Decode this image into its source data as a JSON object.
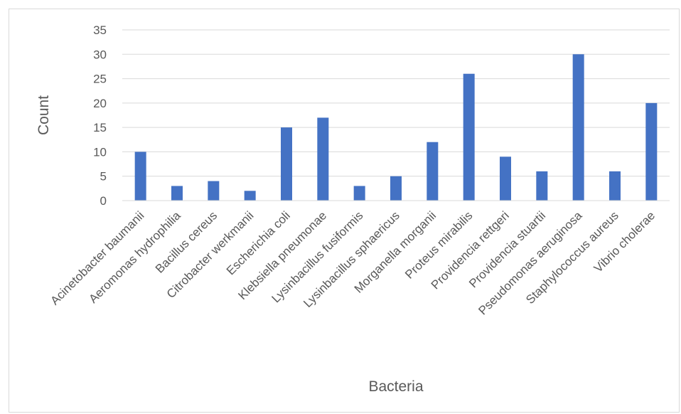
{
  "chart_data": {
    "type": "bar",
    "title": "",
    "xlabel": "Bacteria",
    "ylabel": "Count",
    "ylim": [
      0,
      35
    ],
    "yticks": [
      0,
      5,
      10,
      15,
      20,
      25,
      30,
      35
    ],
    "grid": true,
    "legend": "none",
    "bar_color": "#4472C4",
    "categories": [
      "Acinetobacter baumanii",
      "Aeromonas hydrophilia",
      "Bacillus cereus",
      "Citrobacter werkmanii",
      "Escherichia coli",
      "Klebsiella pneumonae",
      "Lysinbacillus fusiformis",
      "Lysinbacillus sphaericus",
      "Morganella morganii",
      "Proteus mirabilis",
      "Providencia rettgeri",
      "Providencia stuartii",
      "Pseudomonas aeruginosa",
      "Staphylococcus aureus",
      "Vibrio cholerae"
    ],
    "values": [
      10,
      3,
      4,
      2,
      15,
      17,
      3,
      5,
      12,
      26,
      9,
      6,
      30,
      6,
      20
    ]
  }
}
